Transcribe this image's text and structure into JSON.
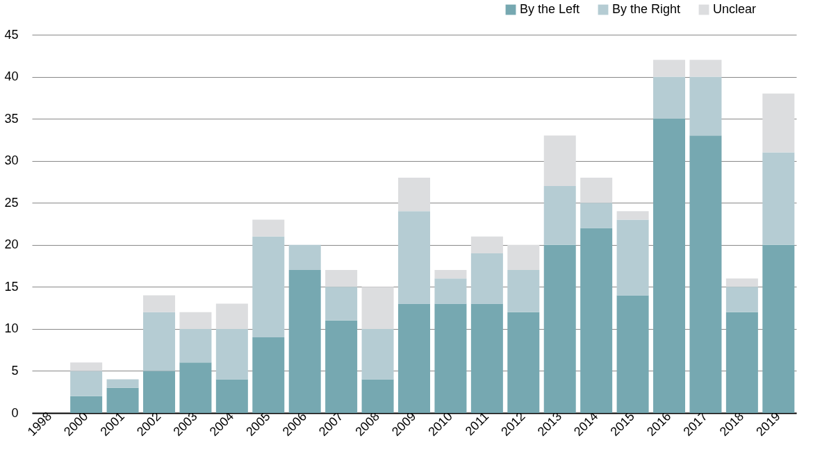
{
  "chart_data": {
    "type": "bar",
    "stacked": true,
    "categories": [
      "1998",
      "2000",
      "2001",
      "2002",
      "2003",
      "2004",
      "2005",
      "2006",
      "2007",
      "2008",
      "2009",
      "2010",
      "2011",
      "2012",
      "2013",
      "2014",
      "2015",
      "2016",
      "2017",
      "2018",
      "2019"
    ],
    "series": [
      {
        "name": "By the Left",
        "color": "#76a8b1",
        "values": [
          0,
          2,
          3,
          5,
          6,
          4,
          9,
          17,
          11,
          4,
          13,
          13,
          13,
          12,
          20,
          22,
          14,
          35,
          33,
          12,
          20
        ]
      },
      {
        "name": "By the Right",
        "color": "#b5ccd3",
        "values": [
          0,
          3,
          1,
          7,
          4,
          6,
          12,
          3,
          4,
          6,
          11,
          3,
          6,
          5,
          7,
          3,
          9,
          5,
          7,
          3,
          11
        ]
      },
      {
        "name": "Unclear",
        "color": "#dcdddf",
        "values": [
          0,
          1,
          0,
          2,
          2,
          3,
          2,
          0,
          2,
          5,
          4,
          1,
          2,
          3,
          6,
          3,
          1,
          2,
          2,
          1,
          7
        ]
      }
    ],
    "ylim": [
      0,
      45
    ],
    "yticks": [
      0,
      5,
      10,
      15,
      20,
      25,
      30,
      35,
      40,
      45
    ],
    "grid": "y",
    "legend": "top right"
  }
}
